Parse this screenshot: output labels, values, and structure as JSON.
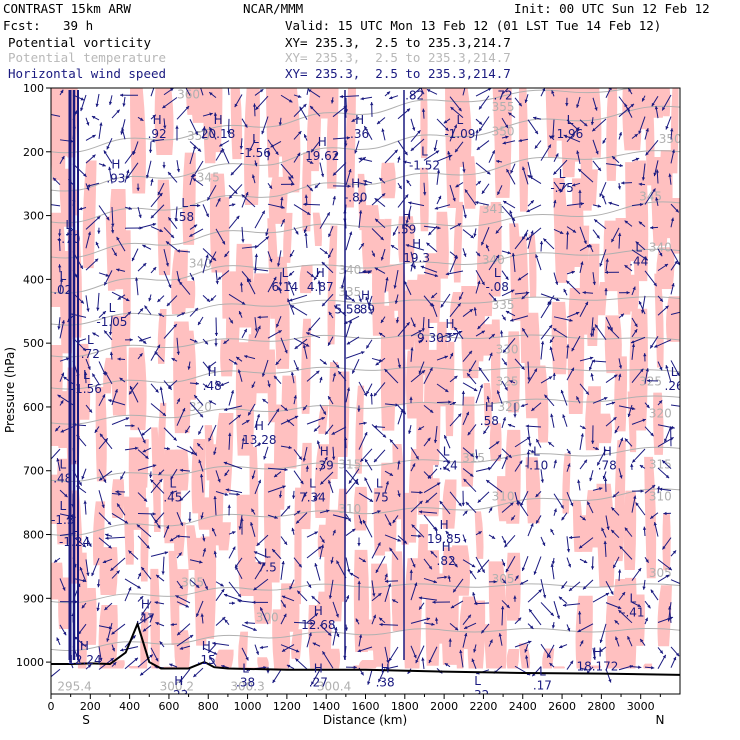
{
  "header": {
    "model": "CONTRAST 15km ARW",
    "center": "NCAR/MMM",
    "init": "Init: 00 UTC Sun 12 Feb 12",
    "fcst_label": "Fcst:",
    "fcst_value": "39 h",
    "valid": "Valid: 15 UTC Mon 13 Feb 12 (01 LST Tue 14 Feb 12)",
    "fields": [
      {
        "name": "Potential vorticity",
        "xy": "XY= 235.3,  2.5 to 235.3,214.7",
        "color": "#000000",
        "xy_color": "#000000"
      },
      {
        "name": "Potential temperature",
        "xy": "XY= 235.3,  2.5 to 235.3,214.7",
        "color": "#b8b8b8",
        "xy_color": "#b8b8b8"
      },
      {
        "name": "Horizontal wind speed",
        "xy": "XY= 235.3,  2.5 to 235.3,214.7",
        "color": "#1a1a80",
        "xy_color": "#1a1a80"
      }
    ]
  },
  "chart_data": {
    "type": "cross-section",
    "xlabel": "Distance (km)",
    "ylabel": "Pressure (hPa)",
    "xlim": [
      0,
      3200
    ],
    "ylim": [
      1050,
      100
    ],
    "xticks": [
      0,
      200,
      400,
      600,
      800,
      1000,
      1200,
      1400,
      1600,
      1800,
      2000,
      2200,
      2400,
      2600,
      2800,
      3000
    ],
    "yticks": [
      100,
      200,
      300,
      400,
      500,
      600,
      700,
      800,
      900,
      1000
    ],
    "left_end_label": "S",
    "right_end_label": "N",
    "colors": {
      "pv_fill": "#ffc0c0",
      "theta": "#b0b0b0",
      "wind": "#1a1a80",
      "terrain": "#000000"
    },
    "theta_contours": [
      {
        "value": 300,
        "levels": [
          980,
          970,
          960,
          955,
          950,
          950,
          950
        ]
      },
      {
        "value": 305,
        "levels": [
          905,
          895,
          885,
          880,
          880,
          880,
          880
        ]
      },
      {
        "value": 310,
        "levels": [
          800,
          785,
          770,
          765,
          760,
          745,
          730
        ]
      },
      {
        "value": 315,
        "levels": [
          715,
          705,
          695,
          690,
          685,
          675,
          665
        ]
      },
      {
        "value": 320,
        "levels": [
          625,
          615,
          605,
          600,
          595,
          590,
          585
        ]
      },
      {
        "value": 325,
        "levels": [
          570,
          560,
          545,
          540,
          540,
          540,
          545
        ]
      },
      {
        "value": 330,
        "levels": [
          520,
          505,
          495,
          490,
          490,
          490,
          495
        ]
      },
      {
        "value": 335,
        "levels": [
          470,
          455,
          440,
          435,
          435,
          430,
          430
        ]
      },
      {
        "value": 340,
        "levels": [
          420,
          400,
          380,
          380,
          375,
          360,
          355
        ]
      },
      {
        "value": 345,
        "levels": [
          365,
          345,
          325,
          315,
          315,
          300,
          280
        ]
      },
      {
        "value": 350,
        "levels": [
          310,
          290,
          270,
          250,
          235,
          210,
          200
        ]
      },
      {
        "value": 355,
        "levels": [
          260,
          240,
          220,
          195,
          175,
          150,
          130
        ]
      },
      {
        "value": 360,
        "levels": [
          200,
          180,
          160,
          140,
          120,
          105,
          100
        ]
      }
    ],
    "theta_x": [
      0,
      500,
      1000,
      1500,
      2000,
      2600,
      3200
    ],
    "theta_labels": [
      {
        "text": "360",
        "x": 700,
        "p": 110
      },
      {
        "text": "355",
        "x": 2300,
        "p": 130
      },
      {
        "text": "350",
        "x": 2300,
        "p": 168
      },
      {
        "text": "350",
        "x": 3150,
        "p": 180
      },
      {
        "text": "350",
        "x": 750,
        "p": 175
      },
      {
        "text": "345",
        "x": 3050,
        "p": 270
      },
      {
        "text": "345",
        "x": 800,
        "p": 240
      },
      {
        "text": "341",
        "x": 2250,
        "p": 290
      },
      {
        "text": "340",
        "x": 2250,
        "p": 370
      },
      {
        "text": "340",
        "x": 3100,
        "p": 350
      },
      {
        "text": "340",
        "x": 760,
        "p": 375
      },
      {
        "text": "340",
        "x": 1520,
        "p": 385
      },
      {
        "text": "335",
        "x": 1520,
        "p": 420
      },
      {
        "text": "335",
        "x": 2300,
        "p": 440
      },
      {
        "text": "330",
        "x": 2320,
        "p": 510
      },
      {
        "text": "325",
        "x": 2320,
        "p": 560
      },
      {
        "text": "325",
        "x": 3050,
        "p": 560
      },
      {
        "text": "320",
        "x": 2330,
        "p": 600
      },
      {
        "text": "320",
        "x": 3100,
        "p": 610
      },
      {
        "text": "320",
        "x": 760,
        "p": 600
      },
      {
        "text": "315",
        "x": 1520,
        "p": 690
      },
      {
        "text": "315",
        "x": 2150,
        "p": 680
      },
      {
        "text": "315",
        "x": 3100,
        "p": 690
      },
      {
        "text": "310",
        "x": 1520,
        "p": 760
      },
      {
        "text": "310",
        "x": 2300,
        "p": 740
      },
      {
        "text": "310",
        "x": 3100,
        "p": 740
      },
      {
        "text": "305",
        "x": 720,
        "p": 875
      },
      {
        "text": "305",
        "x": 2300,
        "p": 870
      },
      {
        "text": "305",
        "x": 3100,
        "p": 860
      },
      {
        "text": "300",
        "x": 1100,
        "p": 930
      },
      {
        "text": "295.4",
        "x": 120,
        "p": 1038
      },
      {
        "text": "300.2",
        "x": 640,
        "p": 1038
      },
      {
        "text": "300.3",
        "x": 1000,
        "p": 1038
      },
      {
        "text": "300.4",
        "x": 1440,
        "p": 1038
      }
    ],
    "extrema": [
      {
        "kind": "H",
        "value": ".92",
        "x": 540,
        "p": 175
      },
      {
        "kind": "H",
        "value": "20.18",
        "x": 850,
        "p": 175
      },
      {
        "kind": "L",
        "value": "-1.56",
        "x": 1040,
        "p": 205
      },
      {
        "kind": "H",
        "value": "19.62",
        "x": 1380,
        "p": 210
      },
      {
        "kind": "H",
        "value": ".36",
        "x": 1570,
        "p": 175
      },
      {
        "kind": "L",
        "value": "-1.09",
        "x": 2080,
        "p": 175
      },
      {
        "kind": "L",
        "value": "1.96",
        "x": 2640,
        "p": 175
      },
      {
        "kind": "L",
        "value": "-1.52",
        "x": 1900,
        "p": 225
      },
      {
        "kind": "H",
        "value": ".93",
        "x": 330,
        "p": 245
      },
      {
        "kind": "L",
        "value": "-.75",
        "x": 2600,
        "p": 260
      },
      {
        "kind": "H",
        "value": "-.80",
        "x": 1550,
        "p": 275
      },
      {
        "kind": "L",
        "value": ".58",
        "x": 680,
        "p": 305
      },
      {
        "kind": "H",
        "value": ".59",
        "x": 1810,
        "p": 325
      },
      {
        "kind": "H",
        "value": "19.3",
        "x": 1860,
        "p": 370
      },
      {
        "kind": "L",
        "value": ".44",
        "x": 2990,
        "p": 375
      },
      {
        "kind": "L",
        "value": "6.14",
        "x": 1190,
        "p": 415
      },
      {
        "kind": "H",
        "value": "4.87",
        "x": 1370,
        "p": 415
      },
      {
        "kind": "L",
        "value": "-.08",
        "x": 2270,
        "p": 415
      },
      {
        "kind": "L",
        "value": "5.58",
        "x": 1510,
        "p": 450
      },
      {
        "kind": "H",
        "value": ".89",
        "x": 1600,
        "p": 450
      },
      {
        "kind": "L",
        "value": "-1.05",
        "x": 310,
        "p": 470
      },
      {
        "kind": "L",
        "value": "9.30",
        "x": 1930,
        "p": 495
      },
      {
        "kind": "H",
        "value": ".37",
        "x": 2030,
        "p": 495
      },
      {
        "kind": "L",
        "value": ".72",
        "x": 200,
        "p": 520
      },
      {
        "kind": "L",
        "value": "-1.56",
        "x": 180,
        "p": 575
      },
      {
        "kind": "H",
        "value": ".48",
        "x": 820,
        "p": 570
      },
      {
        "kind": "H",
        "value": ".58",
        "x": 2230,
        "p": 625
      },
      {
        "kind": "H",
        "value": "13.28",
        "x": 1060,
        "p": 655
      },
      {
        "kind": "H",
        "value": ".39",
        "x": 1390,
        "p": 695
      },
      {
        "kind": "L",
        "value": "-.24",
        "x": 2010,
        "p": 695
      },
      {
        "kind": "L",
        "value": "-.10",
        "x": 2470,
        "p": 695
      },
      {
        "kind": "H",
        "value": ".78",
        "x": 2830,
        "p": 695
      },
      {
        "kind": "L",
        "value": "7.34",
        "x": 1330,
        "p": 745
      },
      {
        "kind": "L",
        "value": ".45",
        "x": 620,
        "p": 745
      },
      {
        "kind": "L",
        "value": ".75",
        "x": 1670,
        "p": 745
      },
      {
        "kind": "H",
        "value": "19.85",
        "x": 2000,
        "p": 810
      },
      {
        "kind": "H",
        "value": ".82",
        "x": 2010,
        "p": 845
      },
      {
        "kind": "L",
        "value": "7.5",
        "x": 1100,
        "p": 855
      },
      {
        "kind": "L",
        "value": "-.41",
        "x": 2960,
        "p": 925
      },
      {
        "kind": "H",
        "value": ".47",
        "x": 480,
        "p": 935
      },
      {
        "kind": "H",
        "value": "12.68",
        "x": 1360,
        "p": 945
      },
      {
        "kind": "H",
        "value": "12.24",
        "x": 170,
        "p": 1000
      },
      {
        "kind": "H",
        "value": ".15",
        "x": 790,
        "p": 1000
      },
      {
        "kind": "H",
        "value": "18.172",
        "x": 2780,
        "p": 1010
      },
      {
        "kind": "H",
        "value": ".23",
        "x": 650,
        "p": 1055
      },
      {
        "kind": "L",
        "value": ".38",
        "x": 990,
        "p": 1035
      },
      {
        "kind": "H",
        "value": ".27",
        "x": 1360,
        "p": 1035
      },
      {
        "kind": "H",
        "value": ".38",
        "x": 1700,
        "p": 1035
      },
      {
        "kind": "L",
        "value": ".17",
        "x": 2500,
        "p": 1040
      },
      {
        "kind": "L",
        "value": "-.32",
        "x": 2170,
        "p": 1055
      },
      {
        "kind": "L",
        "value": "-.70",
        "x": 90,
        "p": 340
      },
      {
        "kind": "L",
        "value": ".02",
        "x": 60,
        "p": 420
      },
      {
        "kind": "L",
        "value": ".48",
        "x": 60,
        "p": 715
      },
      {
        "kind": "L",
        "value": "-1.3",
        "x": 60,
        "p": 780
      },
      {
        "kind": "L",
        "value": "-1.24",
        "x": 120,
        "p": 815
      },
      {
        "kind": "L",
        "value": ".26",
        "x": 3170,
        "p": 570
      },
      {
        "kind": "H",
        "value": ".82",
        "x": 1850,
        "p": 115
      },
      {
        "kind": "H",
        "value": ".72",
        "x": 2300,
        "p": 115
      }
    ],
    "terrain": {
      "x": [
        0,
        100,
        200,
        300,
        380,
        420,
        440,
        460,
        500,
        560,
        700,
        780,
        800,
        830,
        900,
        1200,
        1600,
        2000,
        2400,
        2800,
        3200
      ],
      "p": [
        1003,
        1003,
        1002,
        1003,
        985,
        955,
        940,
        960,
        1000,
        1010,
        1010,
        1000,
        1003,
        1008,
        1010,
        1012,
        1012,
        1015,
        1017,
        1018,
        1020
      ]
    }
  }
}
